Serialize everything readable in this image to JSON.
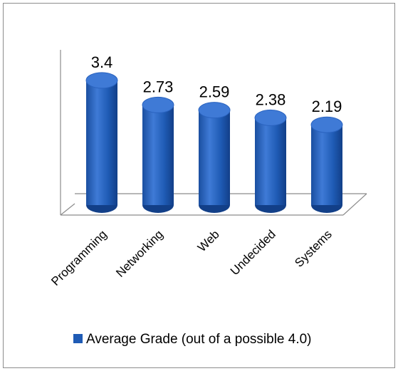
{
  "chart_data": {
    "type": "bar",
    "style": "3d-cylinder",
    "categories": [
      "Programming",
      "Networking",
      "Web",
      "Undecided",
      "Systems"
    ],
    "series": [
      {
        "name": "Average Grade (out of a possible 4.0)",
        "values": [
          3.4,
          2.73,
          2.59,
          2.38,
          2.19
        ]
      }
    ],
    "data_labels": [
      "3.4",
      "2.73",
      "2.59",
      "2.38",
      "2.19"
    ],
    "ylim": [
      0,
      4
    ],
    "grid": false,
    "legend_position": "bottom",
    "colors": {
      "bar_body": "#1f5bb5",
      "bar_top": "#3f7ad6",
      "bar_highlight": "#4d8ae8",
      "bar_shadow": "#0f3a80",
      "floor": "#8c8c8c"
    }
  }
}
